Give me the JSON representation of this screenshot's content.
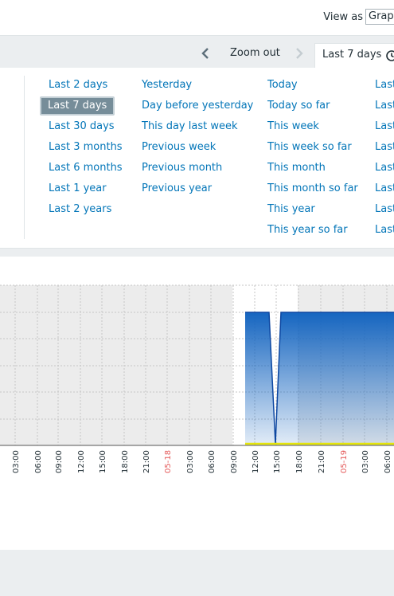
{
  "header": {
    "view_as_label": "View as",
    "view_as_value": "Graph"
  },
  "timebar": {
    "zoom_out_label": "Zoom out",
    "active_range": "Last 7 days",
    "icons": {
      "prev": "chevron-left-icon",
      "next": "chevron-right-icon",
      "clock": "clock-icon"
    }
  },
  "quick_ranges": {
    "col1": [
      "Last 2 days",
      "Last 7 days",
      "Last 30 days",
      "Last 3 months",
      "Last 6 months",
      "Last 1 year",
      "Last 2 years"
    ],
    "col2": [
      "Yesterday",
      "Day before yesterday",
      "This day last week",
      "Previous week",
      "Previous month",
      "Previous year"
    ],
    "col3": [
      "Today",
      "Today so far",
      "This week",
      "This week so far",
      "This month",
      "This month so far",
      "This year",
      "This year so far"
    ],
    "col4": [
      "Last",
      "Last",
      "Last",
      "Last",
      "Last",
      "Last",
      "Last",
      "Last"
    ],
    "selected": "Last 7 days"
  },
  "graph": {
    "x_labels": [
      "03:00",
      "06:00",
      "09:00",
      "12:00",
      "15:00",
      "18:00",
      "21:00",
      "05-18",
      "03:00",
      "06:00",
      "09:00",
      "12:00",
      "15:00",
      "18:00",
      "21:00",
      "05-19",
      "03:00",
      "06:00"
    ],
    "date_label_color": "#e45959",
    "series_color": "#1565c0",
    "trigger_line_color": "#e5e50a"
  }
}
